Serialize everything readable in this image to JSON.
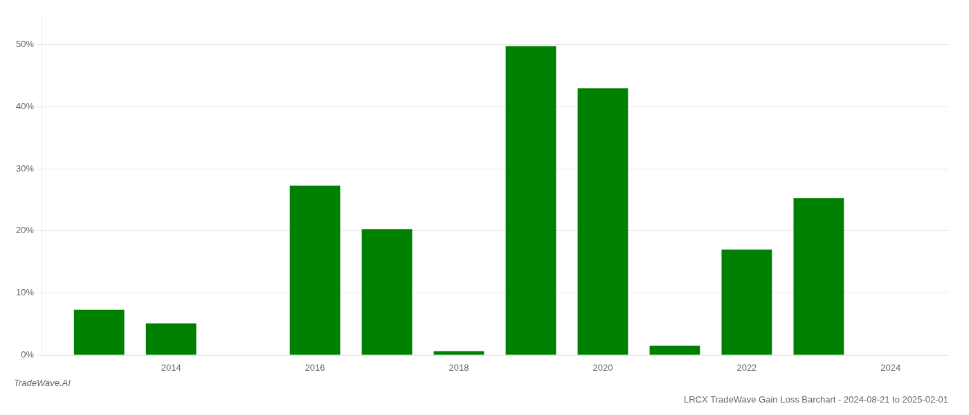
{
  "chart_data": {
    "type": "bar",
    "title": "LRCX TradeWave Gain Loss Barchart - 2024-08-21 to 2025-02-01",
    "annotations": [
      "TradeWave.AI"
    ],
    "x": [
      2013,
      2014,
      2015,
      2016,
      2017,
      2018,
      2019,
      2020,
      2021,
      2022,
      2023,
      2024
    ],
    "values": [
      7.3,
      5.1,
      0.0,
      27.3,
      20.3,
      0.6,
      49.8,
      43.0,
      1.5,
      17.0,
      25.3,
      0.0
    ],
    "color": "#008000",
    "xlim": [
      2012.2,
      2024.8
    ],
    "xticks": [
      2014,
      2016,
      2018,
      2020,
      2022,
      2024
    ],
    "ylim": [
      0,
      55
    ],
    "yticks": [
      {
        "value": 0,
        "label": "0%"
      },
      {
        "value": 10,
        "label": "10%"
      },
      {
        "value": 20,
        "label": "20%"
      },
      {
        "value": 30,
        "label": "30%"
      },
      {
        "value": 40,
        "label": "40%"
      },
      {
        "value": 50,
        "label": "50%"
      }
    ],
    "grid": "y"
  }
}
